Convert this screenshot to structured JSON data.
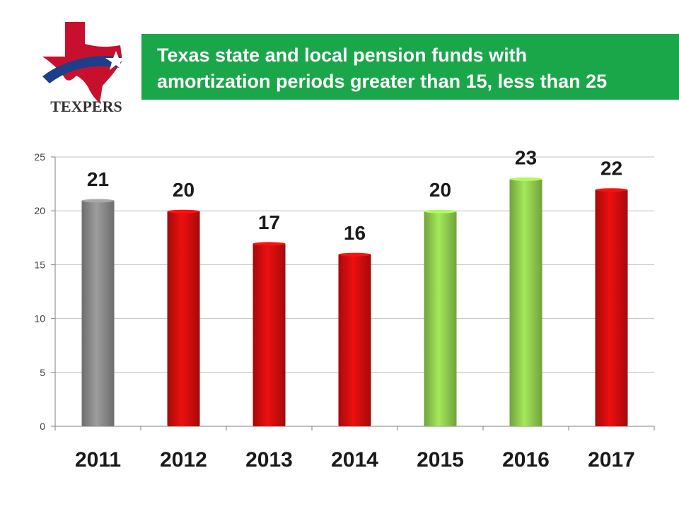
{
  "logo": {
    "text": "TEXPERS",
    "colors": {
      "red": "#c8102e",
      "blue": "#1b3f8b",
      "star": "#ffffff"
    }
  },
  "title": {
    "line1": "Texas state and local pension funds with",
    "line2": "amortization periods greater than 15, less than 25",
    "background": "#1aa74a"
  },
  "chart_data": {
    "type": "bar",
    "title": "Texas state and local pension funds with amortization periods greater than 15, less than 25",
    "categories": [
      "2011",
      "2012",
      "2013",
      "2014",
      "2015",
      "2016",
      "2017"
    ],
    "values": [
      21,
      20,
      17,
      16,
      20,
      23,
      22
    ],
    "bar_colors": [
      "#8c8c8c",
      "#d40d0d",
      "#d40d0d",
      "#d40d0d",
      "#92d050",
      "#92d050",
      "#d40d0d"
    ],
    "ylim": [
      0,
      25
    ],
    "yticks": [
      0,
      5,
      10,
      15,
      20,
      25
    ],
    "grid": true,
    "data_labels": true,
    "legend": "none"
  }
}
